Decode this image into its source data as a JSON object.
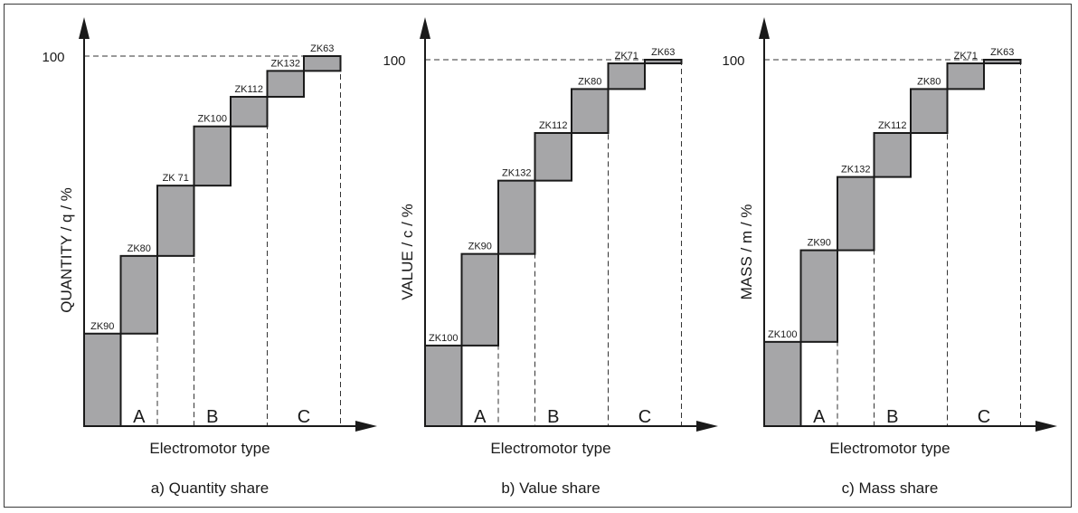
{
  "chart_data": [
    {
      "type": "bar",
      "caption": "a) Quantity share",
      "ylabel": "QUANTITY / q / %",
      "xlabel": "Electromotor type",
      "ytick_label": "100",
      "ylim": [
        0,
        100
      ],
      "categories": [
        "ZK90",
        "ZK80",
        "ZK 71",
        "ZK100",
        "ZK112",
        "ZK132",
        "ZK63"
      ],
      "cumulative_start": [
        0,
        25,
        46,
        65,
        81,
        89,
        96
      ],
      "cumulative_end": [
        25,
        46,
        65,
        81,
        89,
        96,
        100
      ],
      "groups": [
        {
          "label": "A",
          "bars": [
            1,
            1
          ]
        },
        {
          "label": "B",
          "bars": [
            2,
            4
          ]
        },
        {
          "label": "C",
          "bars": [
            5,
            6
          ]
        }
      ]
    },
    {
      "type": "bar",
      "caption": "b) Value share",
      "ylabel": "VALUE / c / %",
      "xlabel": "Electromotor type",
      "ytick_label": "100",
      "ylim": [
        0,
        100
      ],
      "categories": [
        "ZK100",
        "ZK90",
        "ZK132",
        "ZK112",
        "ZK80",
        "ZK71",
        "ZK63"
      ],
      "cumulative_start": [
        0,
        22,
        47,
        67,
        80,
        92,
        99
      ],
      "cumulative_end": [
        22,
        47,
        67,
        80,
        92,
        99,
        100
      ],
      "groups": [
        {
          "label": "A",
          "bars": [
            1,
            1
          ]
        },
        {
          "label": "B",
          "bars": [
            2,
            4
          ]
        },
        {
          "label": "C",
          "bars": [
            5,
            6
          ]
        }
      ]
    },
    {
      "type": "bar",
      "caption": "c) Mass share",
      "ylabel": "MASS / m / %",
      "xlabel": "Electromotor type",
      "ytick_label": "100",
      "ylim": [
        0,
        100
      ],
      "categories": [
        "ZK100",
        "ZK90",
        "ZK132",
        "ZK112",
        "ZK80",
        "ZK71",
        "ZK63"
      ],
      "cumulative_start": [
        0,
        23,
        48,
        68,
        80,
        92,
        99
      ],
      "cumulative_end": [
        23,
        48,
        68,
        80,
        92,
        99,
        100
      ],
      "groups": [
        {
          "label": "A",
          "bars": [
            1,
            1
          ]
        },
        {
          "label": "B",
          "bars": [
            2,
            4
          ]
        },
        {
          "label": "C",
          "bars": [
            5,
            6
          ]
        }
      ]
    }
  ]
}
